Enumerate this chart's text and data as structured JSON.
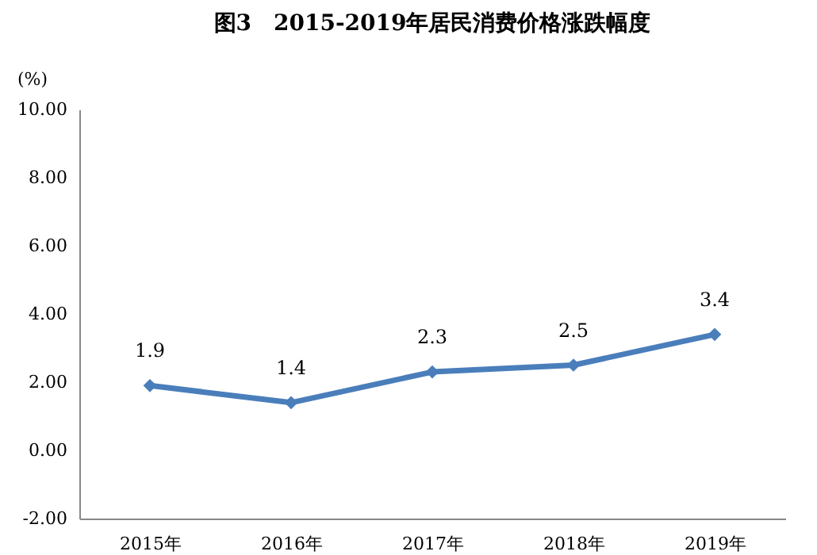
{
  "chart_data": {
    "type": "line",
    "title": "图3　2015-2019年居民消费价格涨跌幅度",
    "ylabel": "(%)",
    "categories": [
      "2015年",
      "2016年",
      "2017年",
      "2018年",
      "2019年"
    ],
    "series": [
      {
        "color": "#4a7ebb",
        "values": [
          1.9,
          1.4,
          2.3,
          2.5,
          3.4
        ]
      }
    ],
    "ylim": [
      -2,
      10
    ],
    "yticks": [
      {
        "value": -2,
        "label": "-2.00"
      },
      {
        "value": 0,
        "label": "0.00"
      },
      {
        "value": 2,
        "label": "2.00"
      },
      {
        "value": 4,
        "label": "4.00"
      },
      {
        "value": 6,
        "label": "6.00"
      },
      {
        "value": 8,
        "label": "8.00"
      },
      {
        "value": 10,
        "label": "10.00"
      }
    ],
    "data_labels": true,
    "marker": "diamond",
    "line_style": "solid",
    "grid": false,
    "legend": false
  }
}
